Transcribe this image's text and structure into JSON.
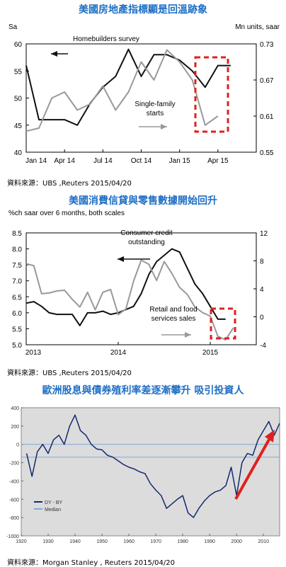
{
  "panels": [
    {
      "title": "美國房地產指標顯是回溫跡象",
      "source": "資料來源：UBS ,Reuters 2015/04/20"
    },
    {
      "title": "美國消費信貸與零售數據開始回升",
      "source": "資料來源：UBS ,Reuters 2015/04/20"
    },
    {
      "title": "歐洲股息與債券殖利率差逐漸攀升  吸引投資人",
      "source": "資料來源：Morgan Stanley , Reuters 2015/04/20"
    }
  ],
  "chart_data": [
    {
      "type": "line",
      "ylabel_left": "Sa",
      "ylabel_right": "Mn units, saar",
      "x_ticks": [
        "Jan 14",
        "Apr 14",
        "Jul 14",
        "Oct 14",
        "Jan 15",
        "Apr 15"
      ],
      "x_range": [
        2014.0,
        2015.5
      ],
      "ylim_left": [
        40,
        60
      ],
      "ylim_right": [
        0.55,
        0.73
      ],
      "yticks_left": [
        40,
        45,
        50,
        55,
        60
      ],
      "yticks_right": [
        0.55,
        0.61,
        0.67,
        0.73
      ],
      "annotations": [
        "Homebuilders survey",
        "Single-family",
        "starts"
      ],
      "highlight_box": true,
      "series": [
        {
          "name": "Homebuilders survey",
          "axis": "left",
          "color": "#111111",
          "x": [
            2014.0,
            2014.083,
            2014.167,
            2014.25,
            2014.333,
            2014.417,
            2014.5,
            2014.583,
            2014.667,
            2014.75,
            2014.833,
            2014.917,
            2015.0,
            2015.083,
            2015.167,
            2015.25,
            2015.333
          ],
          "y": [
            56,
            46,
            46,
            46,
            45,
            49,
            52,
            54,
            59,
            54,
            58,
            58,
            57,
            55,
            52,
            56,
            56
          ]
        },
        {
          "name": "Single-family starts",
          "axis": "right",
          "color": "#999999",
          "x": [
            2014.0,
            2014.083,
            2014.167,
            2014.25,
            2014.333,
            2014.417,
            2014.5,
            2014.583,
            2014.667,
            2014.75,
            2014.833,
            2014.917,
            2015.0,
            2015.083,
            2015.167,
            2015.25
          ],
          "y": [
            0.585,
            0.59,
            0.64,
            0.65,
            0.62,
            0.63,
            0.66,
            0.62,
            0.65,
            0.7,
            0.67,
            0.72,
            0.7,
            0.67,
            0.595,
            0.61
          ]
        }
      ]
    },
    {
      "type": "line",
      "ylabel_left": "%ch saar over 6 months, both scales",
      "x_ticks": [
        "2013",
        "2014",
        "2015"
      ],
      "x_range": [
        2013.0,
        2015.5
      ],
      "ylim_left": [
        5.0,
        8.5
      ],
      "ylim_right": [
        -4,
        12
      ],
      "yticks_left": [
        5.0,
        5.5,
        6.0,
        6.5,
        7.0,
        7.5,
        8.0,
        8.5
      ],
      "yticks_right": [
        -4,
        0,
        4,
        8,
        12
      ],
      "annotations": [
        "Consumer credit",
        "outstanding",
        "Retail and food",
        "services sales"
      ],
      "highlight_box": true,
      "series": [
        {
          "name": "Consumer credit outstanding",
          "axis": "left",
          "color": "#111111",
          "x": [
            2013.0,
            2013.083,
            2013.167,
            2013.25,
            2013.333,
            2013.417,
            2013.5,
            2013.583,
            2013.667,
            2013.75,
            2013.833,
            2013.917,
            2014.0,
            2014.083,
            2014.167,
            2014.25,
            2014.333,
            2014.417,
            2014.5,
            2014.583,
            2014.667,
            2014.75,
            2014.833,
            2014.917,
            2015.0,
            2015.083,
            2015.167
          ],
          "y": [
            6.3,
            6.35,
            6.2,
            6.0,
            5.95,
            5.95,
            5.95,
            5.6,
            6.0,
            6.0,
            6.05,
            5.95,
            6.0,
            6.1,
            6.2,
            6.6,
            7.2,
            7.6,
            7.8,
            8.0,
            7.9,
            7.4,
            6.9,
            6.6,
            6.2,
            5.8,
            5.8
          ]
        },
        {
          "name": "Retail and food services sales",
          "axis": "right",
          "color": "#999999",
          "x": [
            2013.0,
            2013.083,
            2013.167,
            2013.25,
            2013.333,
            2013.417,
            2013.5,
            2013.583,
            2013.667,
            2013.75,
            2013.833,
            2013.917,
            2014.0,
            2014.083,
            2014.167,
            2014.25,
            2014.333,
            2014.417,
            2014.5,
            2014.583,
            2014.667,
            2014.75,
            2014.833,
            2014.917,
            2015.0,
            2015.083,
            2015.167,
            2015.25
          ],
          "y": [
            7.6,
            7.3,
            3.3,
            3.4,
            3.7,
            3.8,
            2.5,
            1.4,
            3.5,
            1.0,
            3.5,
            3.9,
            0.3,
            1.1,
            5.1,
            8.1,
            7.5,
            5.2,
            7.9,
            6.2,
            4.2,
            3.2,
            1.4,
            0.6,
            0.1,
            -2.8,
            -3.3,
            -1.6
          ]
        }
      ]
    },
    {
      "type": "line",
      "x_ticks": [
        "1920",
        "1930",
        "1940",
        "1950",
        "1960",
        "1970",
        "1980",
        "1990",
        "2000",
        "2010"
      ],
      "x_range": [
        1920,
        2016
      ],
      "ylim": [
        -1000,
        400
      ],
      "yticks": [
        -1000,
        -800,
        -600,
        -400,
        -200,
        0,
        200,
        400
      ],
      "legend": [
        "DY - BY",
        "Median"
      ],
      "legend_position": "bottom-left",
      "arrow_annotation": true,
      "series": [
        {
          "name": "DY - BY",
          "color": "#14296e",
          "x": [
            1922,
            1924,
            1926,
            1928,
            1930,
            1932,
            1934,
            1936,
            1938,
            1940,
            1942,
            1944,
            1946,
            1948,
            1950,
            1952,
            1954,
            1956,
            1958,
            1960,
            1962,
            1964,
            1966,
            1968,
            1970,
            1972,
            1974,
            1976,
            1978,
            1980,
            1982,
            1984,
            1986,
            1988,
            1990,
            1992,
            1994,
            1996,
            1998,
            2000,
            2002,
            2004,
            2006,
            2008,
            2010,
            2012,
            2014,
            2016
          ],
          "y": [
            -100,
            -350,
            -80,
            0,
            -100,
            50,
            100,
            0,
            200,
            320,
            150,
            100,
            0,
            -50,
            -60,
            -120,
            -140,
            -180,
            -220,
            -250,
            -270,
            -300,
            -320,
            -430,
            -500,
            -560,
            -700,
            -650,
            -600,
            -560,
            -750,
            -800,
            -700,
            -620,
            -560,
            -520,
            -500,
            -450,
            -250,
            -560,
            -200,
            -100,
            -120,
            50,
            150,
            250,
            100,
            230
          ]
        },
        {
          "name": "Median",
          "color": "#7fa7d8",
          "constant": -140
        }
      ]
    }
  ]
}
